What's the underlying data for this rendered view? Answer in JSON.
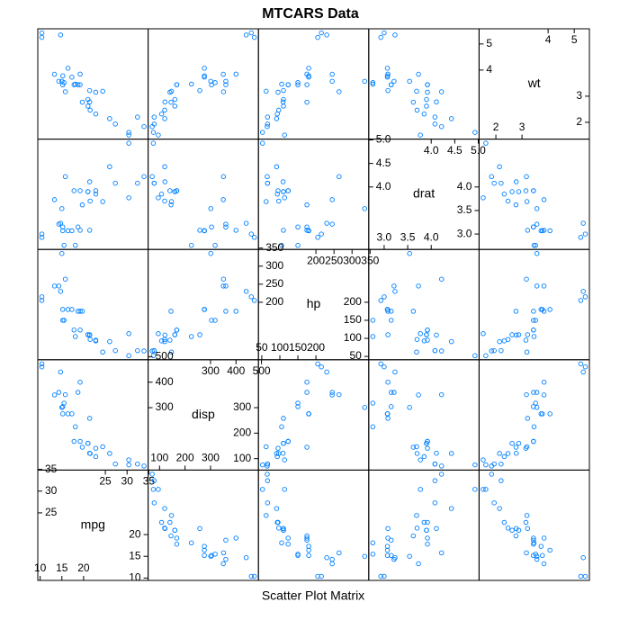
{
  "chart_data": {
    "type": "splom",
    "title": "MTCARS Data",
    "xlabel": "Scatter Plot Matrix",
    "color": "#0080ff",
    "variables": [
      {
        "name": "mpg",
        "values": [
          21,
          21,
          22.8,
          21.4,
          18.7,
          18.1,
          14.3,
          24.4,
          22.8,
          19.2,
          17.8,
          16.4,
          17.3,
          15.2,
          10.4,
          10.4,
          14.7,
          32.4,
          30.4,
          33.9,
          21.5,
          15.5,
          15.2,
          13.3,
          19.2,
          27.3,
          26,
          30.4,
          15.8,
          19.7,
          15,
          21.4
        ],
        "lim": [
          9.46,
          34.84
        ],
        "lower_ticks": [
          10,
          15,
          20
        ],
        "upper_ticks": [
          25,
          30,
          35
        ]
      },
      {
        "name": "disp",
        "values": [
          160,
          160,
          108,
          258,
          360,
          225,
          360,
          146.7,
          140.8,
          167.6,
          167.6,
          275.8,
          275.8,
          275.8,
          472,
          460,
          440,
          78.7,
          75.7,
          71.1,
          120.1,
          318,
          304,
          350,
          400,
          79,
          120.3,
          95.1,
          351,
          145,
          301,
          121
        ],
        "lim": [
          55.1,
          488
        ],
        "lower_ticks": [
          100,
          200,
          300
        ],
        "upper_ticks": [
          300,
          400,
          500
        ]
      },
      {
        "name": "hp",
        "values": [
          110,
          110,
          93,
          110,
          175,
          105,
          245,
          62,
          95,
          123,
          123,
          180,
          180,
          180,
          205,
          215,
          230,
          66,
          52,
          65,
          97,
          150,
          150,
          245,
          175,
          66,
          91,
          113,
          264,
          175,
          335,
          109
        ],
        "lim": [
          40.7,
          346.3
        ],
        "lower_ticks": [
          50,
          100,
          150,
          200
        ],
        "upper_ticks": [
          200,
          250,
          300,
          350
        ]
      },
      {
        "name": "drat",
        "values": [
          3.9,
          3.9,
          3.85,
          3.08,
          3.15,
          2.76,
          3.21,
          3.69,
          3.92,
          3.92,
          3.92,
          3.07,
          3.07,
          3.07,
          2.93,
          3,
          3.23,
          4.08,
          4.93,
          4.22,
          3.7,
          2.76,
          3.15,
          3.73,
          3.08,
          4.08,
          4.43,
          3.77,
          4.22,
          3.62,
          3.54,
          4.11
        ],
        "lim": [
          2.673,
          5.017
        ],
        "lower_ticks": [
          {
            "value": 3,
            "label": "3.0"
          },
          3.5,
          {
            "value": 4,
            "label": "4.0"
          }
        ],
        "upper_ticks": [
          {
            "value": 4,
            "label": "4.0"
          },
          4.5,
          {
            "value": 5,
            "label": "5.0"
          }
        ]
      },
      {
        "name": "wt",
        "values": [
          2.62,
          2.875,
          2.32,
          3.215,
          3.44,
          3.46,
          3.57,
          3.19,
          3.15,
          3.44,
          3.44,
          4.07,
          3.73,
          3.78,
          5.25,
          5.424,
          5.345,
          2.2,
          1.615,
          1.835,
          2.465,
          3.52,
          3.435,
          3.84,
          3.845,
          1.935,
          2.14,
          1.513,
          3.17,
          2.77,
          3.57,
          2.78
        ],
        "lim": [
          1.357,
          5.58
        ],
        "lower_ticks": [
          2,
          3
        ],
        "upper_ticks": [
          4,
          5
        ]
      }
    ]
  }
}
